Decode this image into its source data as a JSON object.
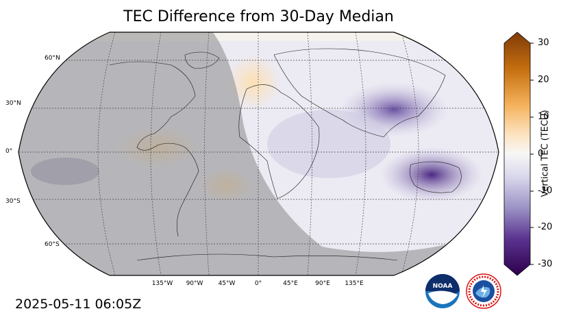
{
  "title": "TEC Difference from 30-Day Median",
  "timestamp": "2025-05-11 06:05Z",
  "colorbar": {
    "label": "Vertical TEC (TECU)",
    "ticks": [
      "30",
      "20",
      "10",
      "0",
      "-10",
      "-20",
      "-30"
    ],
    "range": [
      -30,
      30
    ]
  },
  "map": {
    "projection": "Robinson",
    "lat_labels": [
      "60°N",
      "30°N",
      "0°",
      "30°S",
      "60°S"
    ],
    "lon_labels": [
      "135°W",
      "90°W",
      "45°W",
      "0°",
      "45°E",
      "90°E",
      "135°E"
    ],
    "night_shading": true
  },
  "logos": [
    "noaa-logo",
    "national-weather-service-logo"
  ],
  "colors": {
    "positive": "#7f3b08",
    "neutral": "#f7f7f7",
    "negative": "#2d004b",
    "night_overlay": "#8a8a8a"
  }
}
